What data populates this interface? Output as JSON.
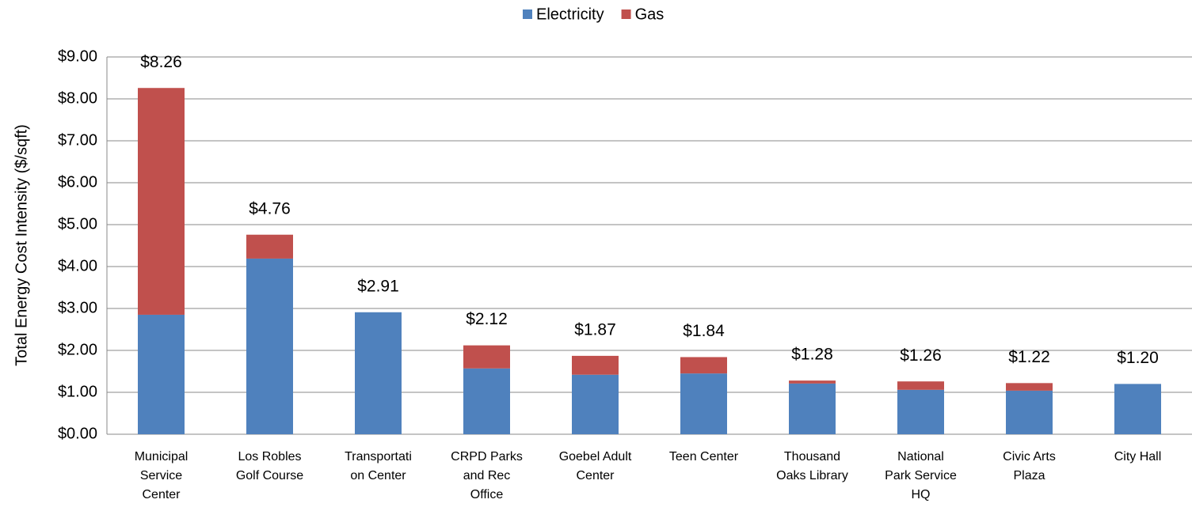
{
  "chart_data": {
    "type": "stacked_bar",
    "y_label": "Total Energy Cost Intensity   ($/sqft)",
    "categories": [
      "Municipal\nService\nCenter",
      "Los Robles\nGolf Course",
      "Transportati\non Center",
      "CRPD Parks\nand Rec\nOffice",
      "Goebel Adult\nCenter",
      "Teen Center",
      "Thousand\nOaks Library",
      "National\nPark Service\nHQ",
      "Civic Arts\nPlaza",
      "City Hall"
    ],
    "series": [
      {
        "name": "Electricity",
        "color": "#4f81bd",
        "values": [
          2.85,
          4.19,
          2.91,
          1.57,
          1.42,
          1.45,
          1.21,
          1.06,
          1.04,
          1.2
        ]
      },
      {
        "name": "Gas",
        "color": "#c0504d",
        "values": [
          5.41,
          0.57,
          0,
          0.55,
          0.45,
          0.39,
          0.07,
          0.2,
          0.18,
          0
        ]
      }
    ],
    "total_labels": [
      "$8.26",
      "$4.76",
      "$2.91",
      "$2.12",
      "$1.87",
      "$1.84",
      "$1.28",
      "$1.26",
      "$1.22",
      "$1.20"
    ],
    "ylim": [
      0,
      9
    ],
    "yticks": [
      {
        "value": 0,
        "label": "$0.00"
      },
      {
        "value": 1,
        "label": "$1.00"
      },
      {
        "value": 2,
        "label": "$2.00"
      },
      {
        "value": 3,
        "label": "$3.00"
      },
      {
        "value": 4,
        "label": "$4.00"
      },
      {
        "value": 5,
        "label": "$5.00"
      },
      {
        "value": 6,
        "label": "$6.00"
      },
      {
        "value": 7,
        "label": "$7.00"
      },
      {
        "value": 8,
        "label": "$8.00"
      },
      {
        "value": 9,
        "label": "$9.00"
      }
    ],
    "grid": true,
    "legend": "top"
  }
}
